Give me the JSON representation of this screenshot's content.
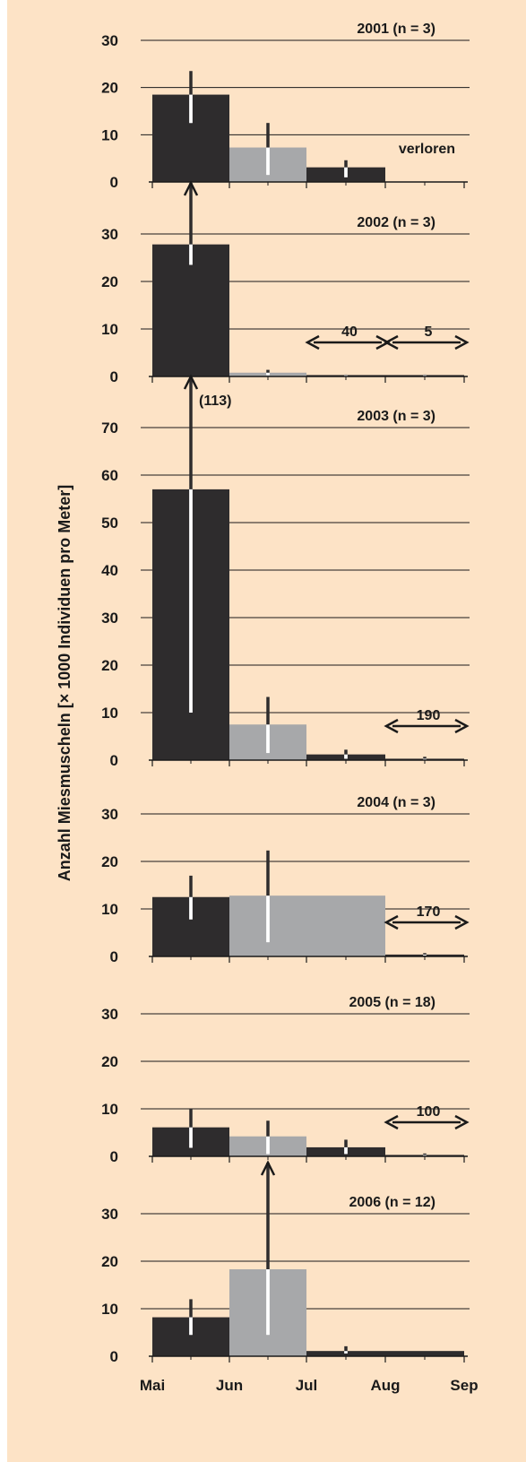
{
  "figure": {
    "ylabel": "Anzahl  Miesmuscheln [× 1000 Individuen pro Meter]",
    "months": [
      "Mai",
      "Jun",
      "Jul",
      "Aug",
      "Sep"
    ],
    "colors": {
      "dark": "#2e2c2d",
      "light": "#a7a8aa",
      "grid": "#1a1a1a",
      "background": "#fde3c6"
    }
  },
  "chart_data": [
    {
      "type": "bar",
      "title": "2001 (n = 3)",
      "categories": [
        "Mai-Jun",
        "Jun-Jul",
        "Jul-Aug",
        "Aug-Sep"
      ],
      "values": [
        18.5,
        7.3,
        3.1,
        0
      ],
      "error_ranges": [
        [
          12.5,
          23.5
        ],
        [
          1.5,
          12.5
        ],
        [
          1.0,
          4.6
        ],
        null
      ],
      "bar_colors": [
        "dark",
        "light",
        "dark",
        "dark"
      ],
      "ylim": [
        0,
        30
      ],
      "yticks": [
        0,
        10,
        20,
        30
      ],
      "annotations": [
        {
          "text": "verloren",
          "category": "Aug-Sep"
        }
      ]
    },
    {
      "type": "bar",
      "title": "2002 (n = 3)",
      "categories": [
        "Mai-Jun",
        "Jun-Jul",
        "Jul-Aug",
        "Aug-Sep"
      ],
      "values": [
        27.8,
        0.8,
        0.1,
        0.1
      ],
      "error_ranges": [
        [
          23.5,
          31.8
        ],
        [
          0.3,
          1.4
        ],
        [
          0,
          0.4
        ],
        [
          0,
          0.4
        ]
      ],
      "bar_colors": [
        "dark",
        "light",
        "dark",
        "dark"
      ],
      "ylim": [
        0,
        30
      ],
      "yticks": [
        0,
        10,
        20,
        30
      ],
      "annotations": [
        {
          "text": "40",
          "category": "Jul-Aug",
          "type": "double-arrow"
        },
        {
          "text": "5",
          "category": "Aug-Sep",
          "type": "double-arrow"
        },
        {
          "text": "(113)",
          "category": "Mai-Jun",
          "type": "upper-error-note"
        }
      ]
    },
    {
      "type": "bar",
      "title": "2003 (n = 3)",
      "categories": [
        "Mai-Jun",
        "Jun-Jul",
        "Jul-Aug",
        "Aug-Sep"
      ],
      "values": [
        57,
        7.5,
        1.2,
        0.1
      ],
      "error_ranges": [
        [
          10,
          113
        ],
        [
          1.5,
          13.3
        ],
        [
          0.3,
          2.2
        ],
        [
          0,
          0.7
        ]
      ],
      "bar_colors": [
        "dark",
        "light",
        "dark",
        "dark"
      ],
      "ylim": [
        0,
        70
      ],
      "yticks": [
        0,
        10,
        20,
        30,
        40,
        50,
        60,
        70
      ],
      "annotations": [
        {
          "text": "190",
          "category": "Aug-Sep",
          "type": "double-arrow"
        }
      ]
    },
    {
      "type": "bar",
      "title": "2004 (n = 3)",
      "categories": [
        "Mai-Jun",
        "Jun-Jul",
        "Jul-Aug",
        "Aug-Sep"
      ],
      "values": [
        12.5,
        12.8,
        12.8,
        0.4
      ],
      "error_ranges": [
        [
          7.8,
          17.0
        ],
        [
          3.0,
          22.3
        ],
        null,
        [
          0.2,
          0.7
        ]
      ],
      "bar_colors": [
        "dark",
        "light",
        "light",
        "dark"
      ],
      "ylim": [
        0,
        30
      ],
      "yticks": [
        0,
        10,
        20,
        30
      ],
      "annotations": [
        {
          "text": "170",
          "category": "Aug-Sep",
          "type": "double-arrow"
        }
      ]
    },
    {
      "type": "bar",
      "title": "2005 (n = 18)",
      "categories": [
        "Mai-Jun",
        "Jun-Jul",
        "Jul-Aug",
        "Aug-Sep"
      ],
      "values": [
        6.1,
        4.2,
        1.9,
        0.1
      ],
      "error_ranges": [
        [
          1.8,
          10.0
        ],
        [
          0.5,
          7.5
        ],
        [
          0.5,
          3.5
        ],
        [
          0,
          0.6
        ]
      ],
      "bar_colors": [
        "dark",
        "light",
        "dark",
        "dark"
      ],
      "ylim": [
        0,
        30
      ],
      "yticks": [
        0,
        10,
        20,
        30
      ],
      "annotations": [
        {
          "text": "100",
          "category": "Aug-Sep",
          "type": "double-arrow"
        }
      ]
    },
    {
      "type": "bar",
      "title": "2006 (n = 12)",
      "categories": [
        "Mai-Jun",
        "Jun-Jul",
        "Jul-Aug",
        "Aug-Sep"
      ],
      "values": [
        8.2,
        18.3,
        1.1,
        1.1
      ],
      "error_ranges": [
        [
          4.5,
          12.0
        ],
        [
          4.5,
          31.5
        ],
        [
          0.6,
          2.1
        ],
        null
      ],
      "bar_colors": [
        "dark",
        "light",
        "dark",
        "dark"
      ],
      "ylim": [
        0,
        30
      ],
      "yticks": [
        0,
        10,
        20,
        30
      ],
      "annotations": []
    }
  ]
}
